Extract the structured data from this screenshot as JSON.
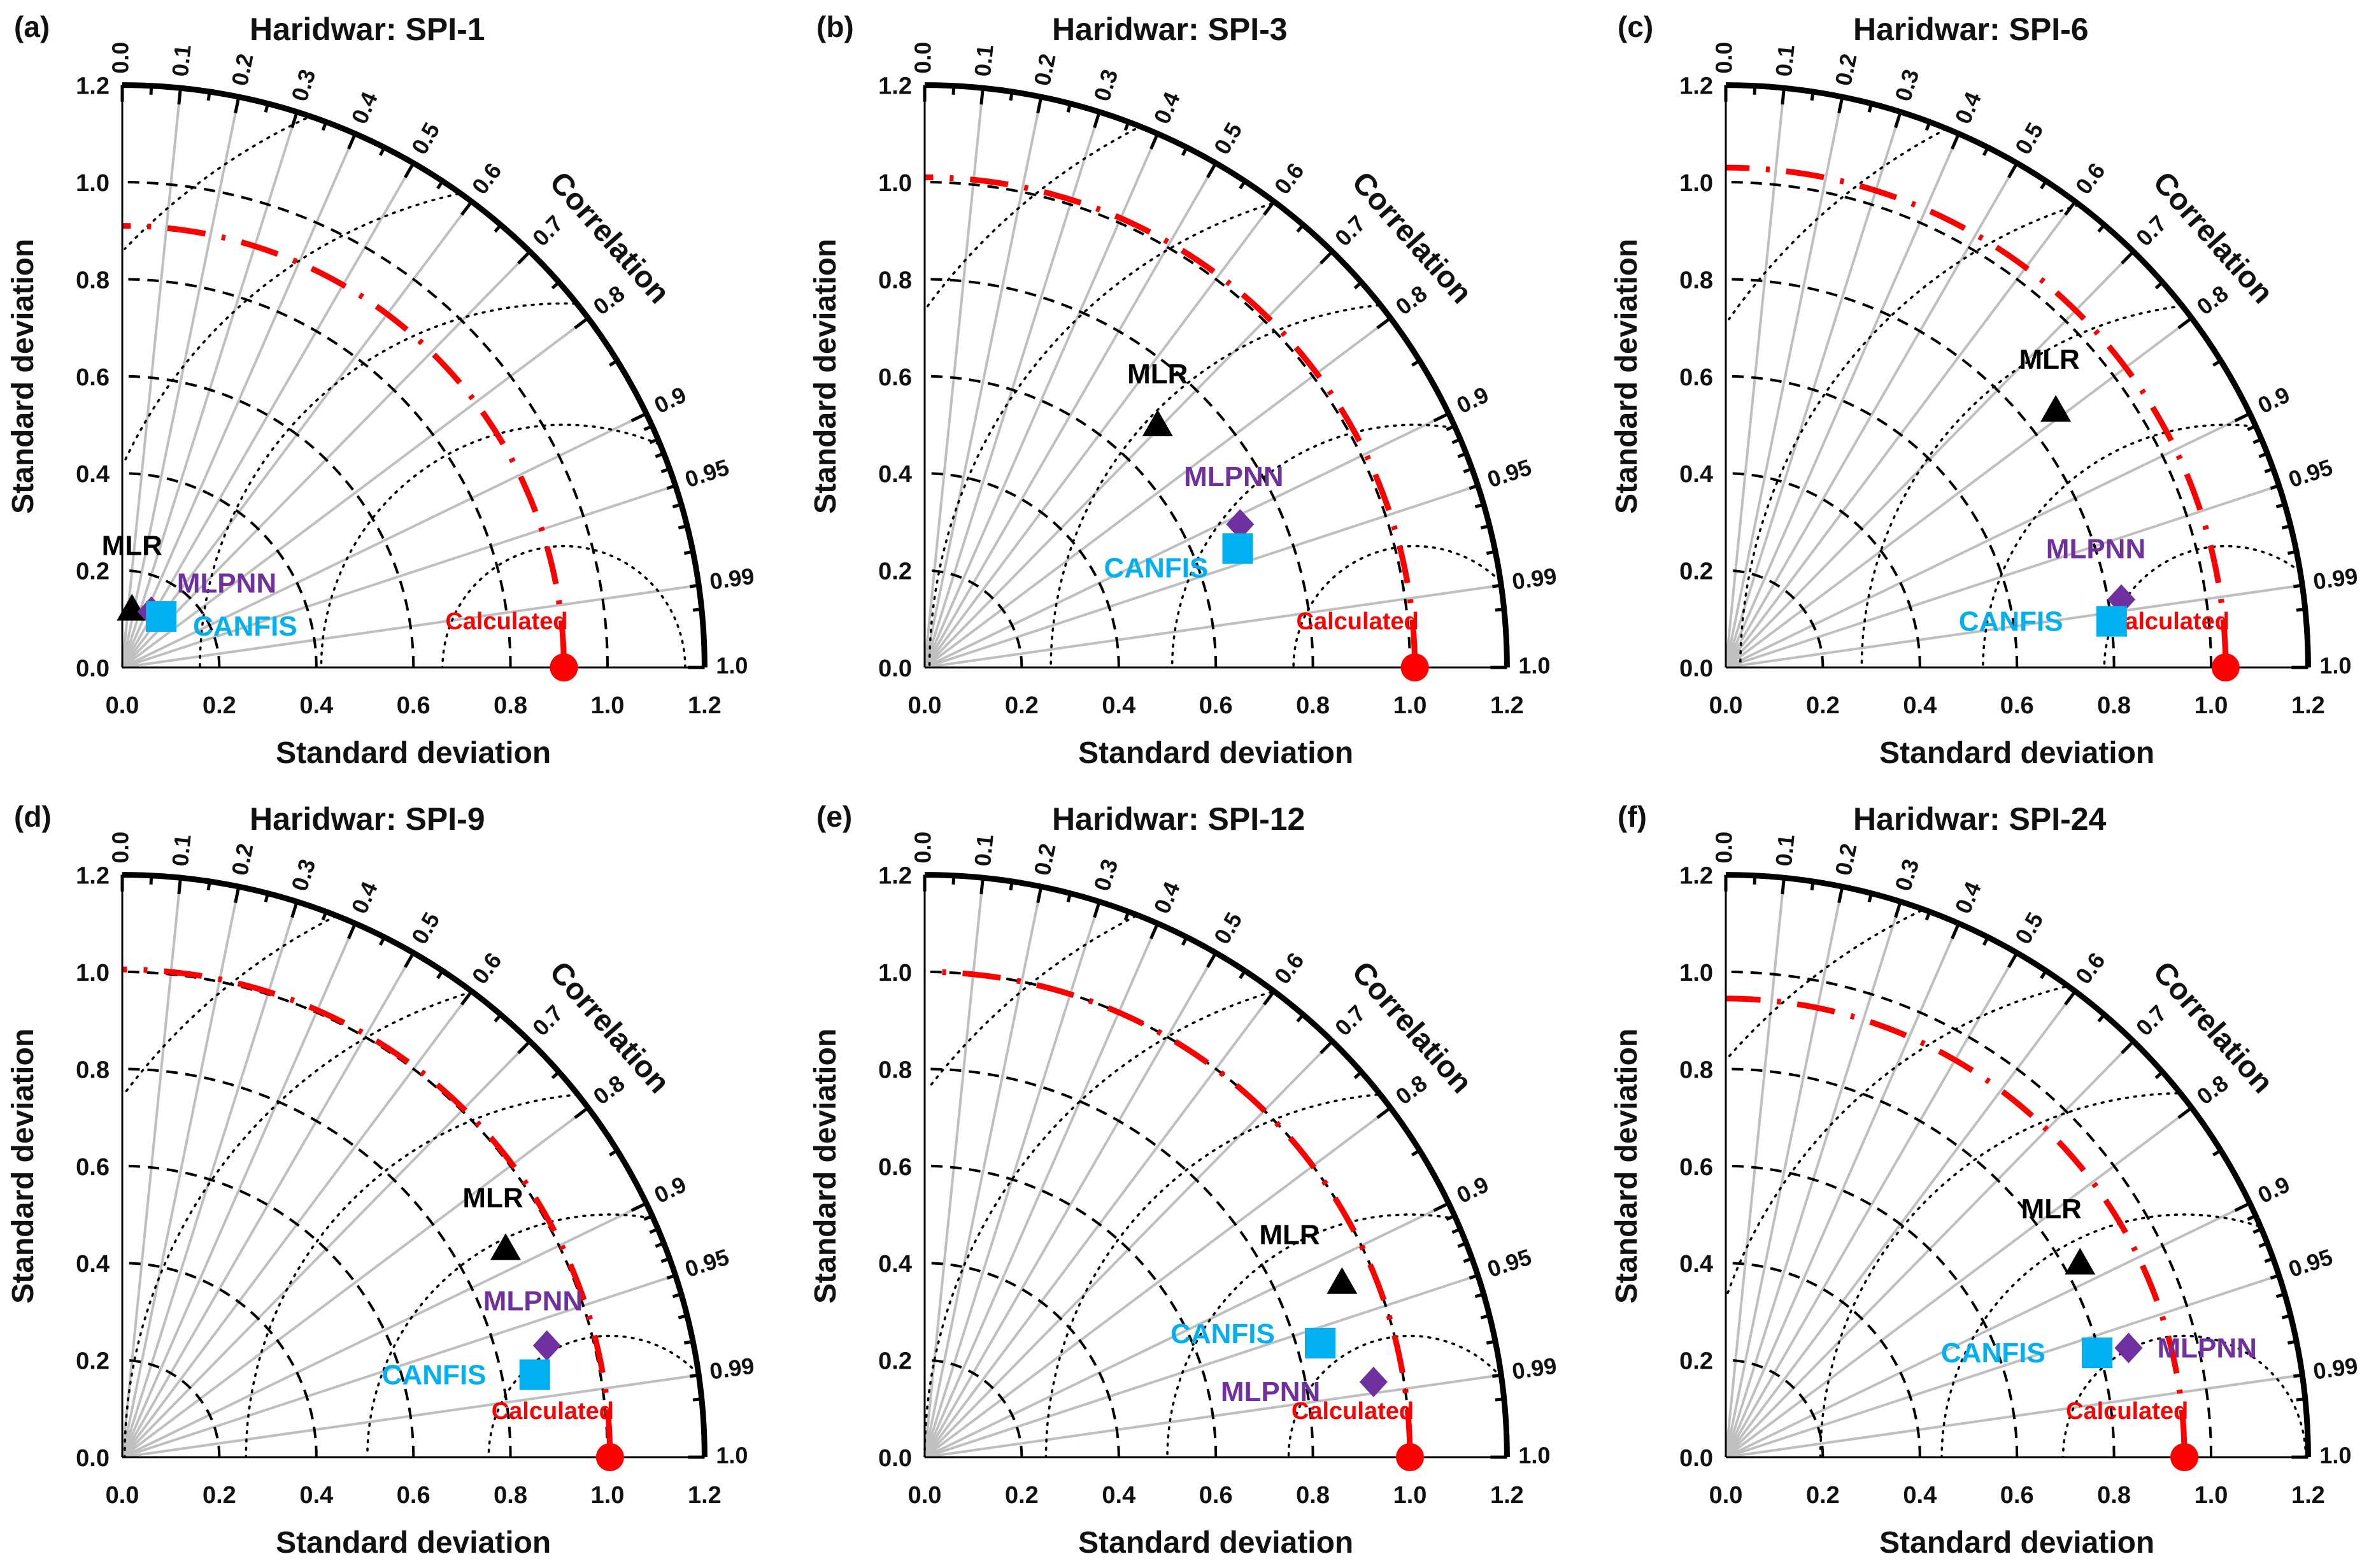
{
  "colors": {
    "MLR": "#000000",
    "MLPNN": "#7030a0",
    "CANFIS": "#00b0f0",
    "reference": "#ff0000",
    "radial": "#bfbfbf",
    "axis": "#000000"
  },
  "chart_data": [
    {
      "type": "taylor-diagram",
      "panel": "(a)",
      "title": "Haridwar: SPI-1",
      "xlabel": "Standard deviation",
      "ylabel": "Standard deviation",
      "arc_label": "Correlation",
      "std_range": [
        0,
        1.2
      ],
      "std_ticks": [
        "0.0",
        "0.2",
        "0.4",
        "0.6",
        "0.8",
        "1.0",
        "1.2"
      ],
      "correlation_ticks": [
        "0.0",
        "0.1",
        "0.2",
        "0.3",
        "0.4",
        "0.5",
        "0.6",
        "0.7",
        "0.8",
        "0.9",
        "0.95",
        "0.99",
        "1.0"
      ],
      "reference": {
        "label": "Calculated",
        "std": 0.91
      },
      "models": [
        {
          "name": "MLR",
          "x": 0.02,
          "y": 0.12
        },
        {
          "name": "MLPNN",
          "x": 0.06,
          "y": 0.115
        },
        {
          "name": "CANFIS",
          "x": 0.08,
          "y": 0.105
        }
      ]
    },
    {
      "type": "taylor-diagram",
      "panel": "(b)",
      "title": "Haridwar: SPI-3",
      "xlabel": "Standard deviation",
      "ylabel": "Standard deviation",
      "arc_label": "Correlation",
      "std_range": [
        0,
        1.2
      ],
      "std_ticks": [
        "0.0",
        "0.2",
        "0.4",
        "0.6",
        "0.8",
        "1.0",
        "1.2"
      ],
      "correlation_ticks": [
        "0.0",
        "0.1",
        "0.2",
        "0.3",
        "0.4",
        "0.5",
        "0.6",
        "0.7",
        "0.8",
        "0.9",
        "0.95",
        "0.99",
        "1.0"
      ],
      "reference": {
        "label": "Calculated",
        "std": 1.01
      },
      "models": [
        {
          "name": "MLR",
          "x": 0.48,
          "y": 0.5
        },
        {
          "name": "MLPNN",
          "x": 0.65,
          "y": 0.295
        },
        {
          "name": "CANFIS",
          "x": 0.645,
          "y": 0.245
        }
      ]
    },
    {
      "type": "taylor-diagram",
      "panel": "(c)",
      "title": "Haridwar: SPI-6",
      "xlabel": "Standard deviation",
      "ylabel": "Standard deviation",
      "arc_label": "Correlation",
      "std_range": [
        0,
        1.2
      ],
      "std_ticks": [
        "0.0",
        "0.2",
        "0.4",
        "0.6",
        "0.8",
        "1.0",
        "1.2"
      ],
      "correlation_ticks": [
        "0.0",
        "0.1",
        "0.2",
        "0.3",
        "0.4",
        "0.5",
        "0.6",
        "0.7",
        "0.8",
        "0.9",
        "0.95",
        "0.99",
        "1.0"
      ],
      "reference": {
        "label": "Calculated",
        "std": 1.03
      },
      "models": [
        {
          "name": "MLR",
          "x": 0.68,
          "y": 0.53
        },
        {
          "name": "MLPNN",
          "x": 0.815,
          "y": 0.14
        },
        {
          "name": "CANFIS",
          "x": 0.795,
          "y": 0.095
        }
      ]
    },
    {
      "type": "taylor-diagram",
      "panel": "(d)",
      "title": "Haridwar: SPI-9",
      "xlabel": "Standard deviation",
      "ylabel": "Standard deviation",
      "arc_label": "Correlation",
      "std_range": [
        0,
        1.2
      ],
      "std_ticks": [
        "0.0",
        "0.2",
        "0.4",
        "0.6",
        "0.8",
        "1.0",
        "1.2"
      ],
      "correlation_ticks": [
        "0.0",
        "0.1",
        "0.2",
        "0.3",
        "0.4",
        "0.5",
        "0.6",
        "0.7",
        "0.8",
        "0.9",
        "0.95",
        "0.99",
        "1.0"
      ],
      "reference": {
        "label": "Calculated",
        "std": 1.005
      },
      "models": [
        {
          "name": "MLR",
          "x": 0.79,
          "y": 0.43
        },
        {
          "name": "MLPNN",
          "x": 0.875,
          "y": 0.23
        },
        {
          "name": "CANFIS",
          "x": 0.85,
          "y": 0.17
        }
      ]
    },
    {
      "type": "taylor-diagram",
      "panel": "(e)",
      "title": "Haridwar: SPI-12",
      "xlabel": "Standard deviation",
      "ylabel": "Standard deviation",
      "arc_label": "Correlation",
      "std_range": [
        0,
        1.2
      ],
      "std_ticks": [
        "0.0",
        "0.2",
        "0.4",
        "0.6",
        "0.8",
        "1.0",
        "1.2"
      ],
      "correlation_ticks": [
        "0.0",
        "0.1",
        "0.2",
        "0.3",
        "0.4",
        "0.5",
        "0.6",
        "0.7",
        "0.8",
        "0.9",
        "0.95",
        "0.99",
        "1.0"
      ],
      "reference": {
        "label": "Calculated",
        "std": 1.0
      },
      "models": [
        {
          "name": "MLR",
          "x": 0.86,
          "y": 0.36
        },
        {
          "name": "CANFIS",
          "x": 0.815,
          "y": 0.235
        },
        {
          "name": "MLPNN",
          "x": 0.925,
          "y": 0.155
        }
      ]
    },
    {
      "type": "taylor-diagram",
      "panel": "(f)",
      "title": "Haridwar: SPI-24",
      "xlabel": "Standard deviation",
      "ylabel": "Standard deviation",
      "arc_label": "Correlation",
      "std_range": [
        0,
        1.2
      ],
      "std_ticks": [
        "0.0",
        "0.2",
        "0.4",
        "0.6",
        "0.8",
        "1.0",
        "1.2"
      ],
      "correlation_ticks": [
        "0.0",
        "0.1",
        "0.2",
        "0.3",
        "0.4",
        "0.5",
        "0.6",
        "0.7",
        "0.8",
        "0.9",
        "0.95",
        "0.99",
        "1.0"
      ],
      "reference": {
        "label": "Calculated",
        "std": 0.945
      },
      "models": [
        {
          "name": "MLR",
          "x": 0.73,
          "y": 0.4
        },
        {
          "name": "CANFIS",
          "x": 0.765,
          "y": 0.215
        },
        {
          "name": "MLPNN",
          "x": 0.83,
          "y": 0.225
        }
      ]
    }
  ]
}
